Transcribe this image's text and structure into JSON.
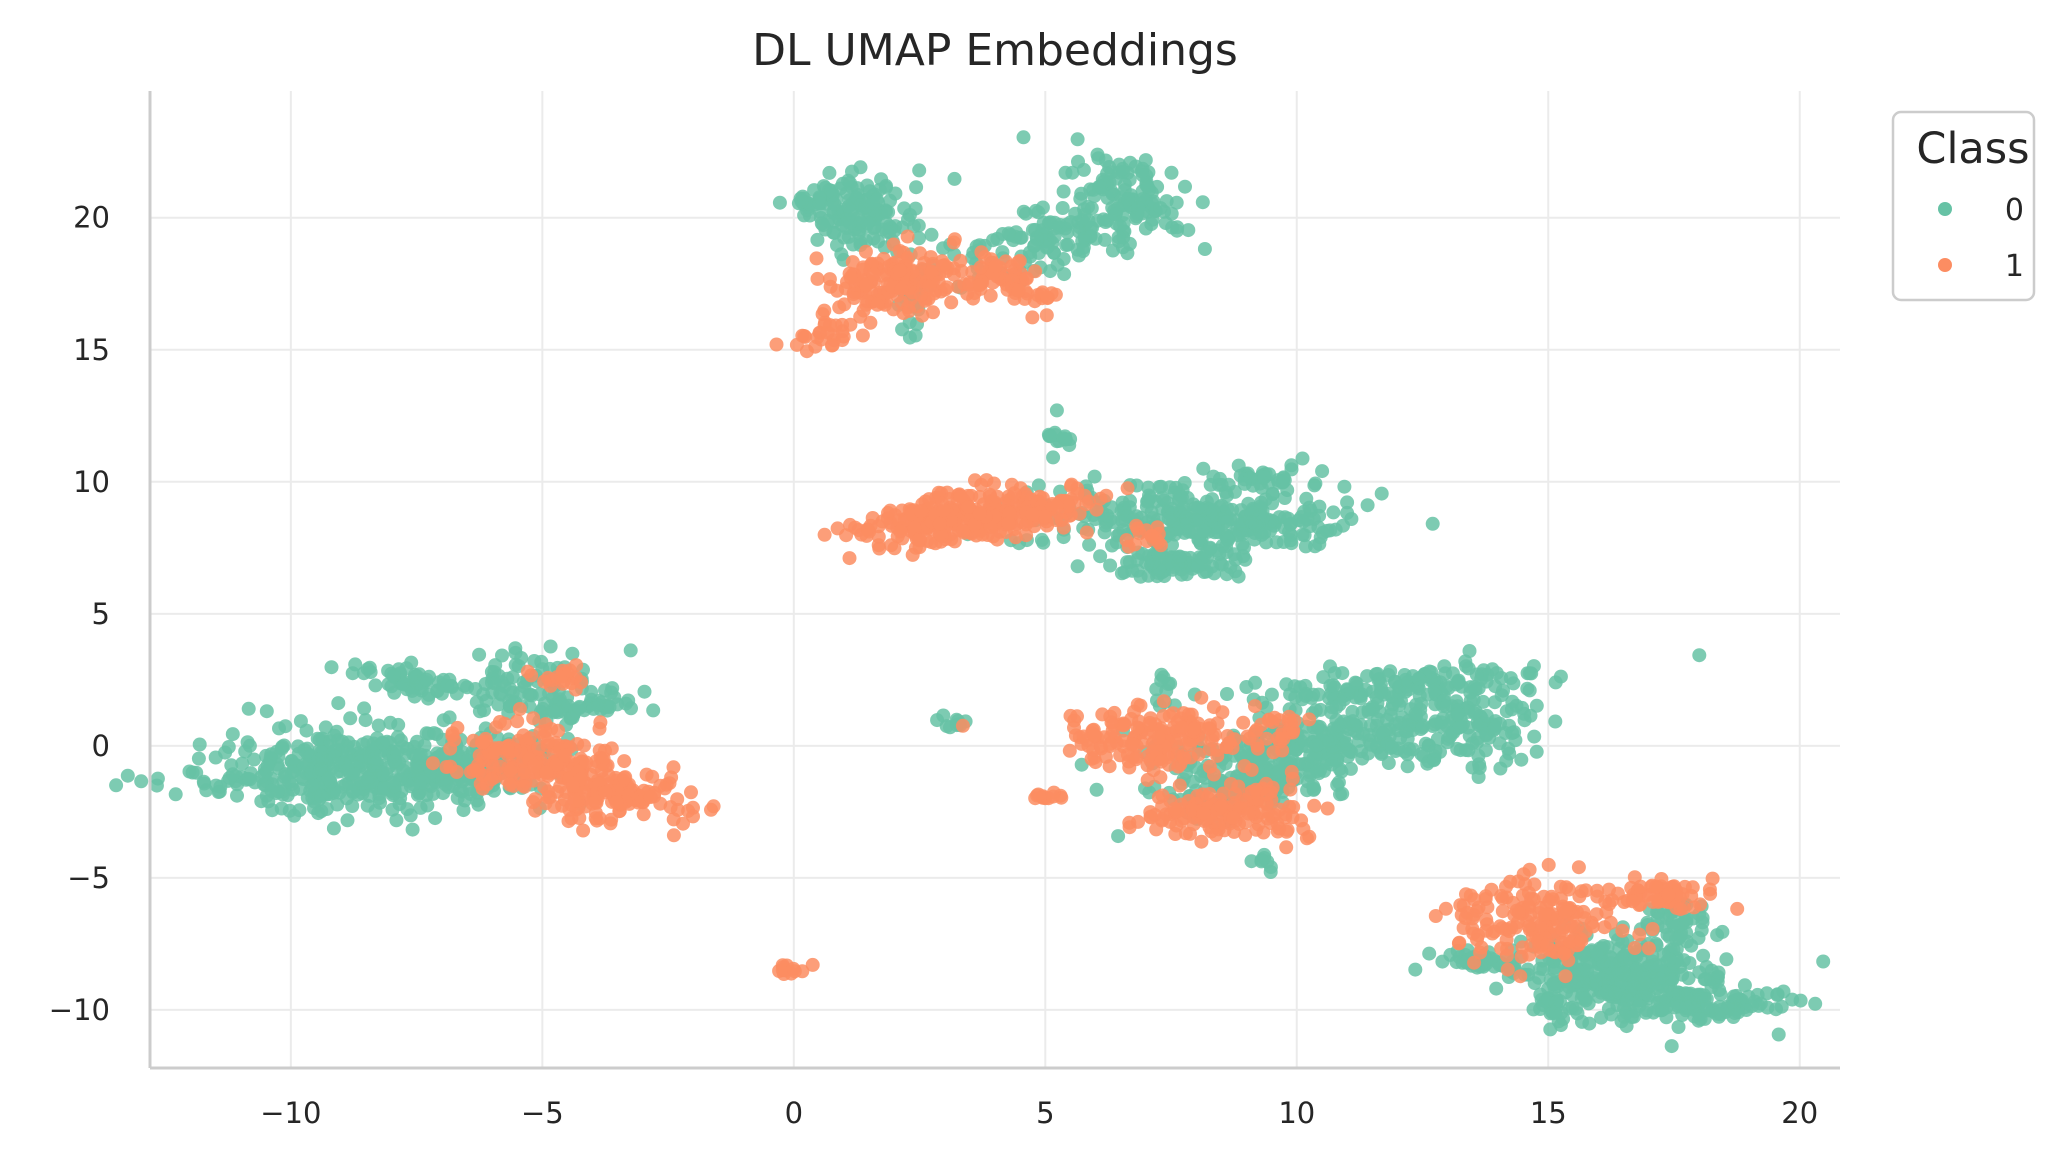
{
  "chart_data": {
    "type": "scatter",
    "title": "DL UMAP Embeddings",
    "xlabel": "",
    "ylabel": "",
    "xlim": [
      -12.8,
      20.8
    ],
    "ylim": [
      -12.2,
      24.8
    ],
    "xticks": [
      -10,
      -5,
      0,
      5,
      10,
      15,
      20
    ],
    "xtick_labels": [
      "−10",
      "−5",
      "0",
      "5",
      "10",
      "15",
      "20"
    ],
    "yticks": [
      -10,
      -5,
      0,
      5,
      10,
      15,
      20
    ],
    "ytick_labels": [
      "−10",
      "−5",
      "0",
      "5",
      "10",
      "15",
      "20"
    ],
    "grid": true,
    "legend": {
      "title": "Class",
      "placement": "upper-right-outside"
    },
    "series": [
      {
        "name": "0",
        "color": "#66c2a5",
        "clusters": [
          {
            "cx": -8.6,
            "cy": -0.9,
            "sx": 1.6,
            "sy": 0.8,
            "n": 420,
            "rot": -0.05
          },
          {
            "cx": -6.6,
            "cy": -0.9,
            "sx": 0.9,
            "sy": 0.6,
            "n": 120,
            "rot": 0.1
          },
          {
            "cx": -7.5,
            "cy": 2.4,
            "sx": 0.6,
            "sy": 0.25,
            "n": 60,
            "rot": -0.3
          },
          {
            "cx": -5.2,
            "cy": 2.2,
            "sx": 0.8,
            "sy": 0.8,
            "n": 90,
            "rot": 0.3
          },
          {
            "cx": -4.3,
            "cy": 1.4,
            "sx": 0.6,
            "sy": 0.2,
            "n": 40,
            "rot": 0.2
          },
          {
            "cx": 1.3,
            "cy": 20.2,
            "sx": 0.6,
            "sy": 0.7,
            "n": 140,
            "rot": 0.2
          },
          {
            "cx": 5.2,
            "cy": 19.2,
            "sx": 1.3,
            "sy": 0.6,
            "n": 150,
            "rot": 0.6
          },
          {
            "cx": 6.6,
            "cy": 21.2,
            "sx": 0.5,
            "sy": 0.8,
            "n": 80,
            "rot": 0.6
          },
          {
            "cx": 2.4,
            "cy": 17.0,
            "sx": 0.15,
            "sy": 0.6,
            "n": 25,
            "rot": 0.0
          },
          {
            "cx": 0.2,
            "cy": 20.6,
            "sx": 0.2,
            "sy": 0.1,
            "n": 12,
            "rot": 0.0
          },
          {
            "cx": 8.0,
            "cy": 8.6,
            "sx": 1.5,
            "sy": 0.7,
            "n": 330,
            "rot": -0.05
          },
          {
            "cx": 7.5,
            "cy": 6.9,
            "sx": 0.7,
            "sy": 0.25,
            "n": 80,
            "rot": 0.0
          },
          {
            "cx": 9.5,
            "cy": 10.2,
            "sx": 0.4,
            "sy": 0.15,
            "n": 25,
            "rot": 0.0
          },
          {
            "cx": 5.3,
            "cy": 11.7,
            "sx": 0.15,
            "sy": 0.4,
            "n": 15,
            "rot": 0.0
          },
          {
            "cx": 3.2,
            "cy": 0.9,
            "sx": 0.15,
            "sy": 0.1,
            "n": 10,
            "rot": 0.0
          },
          {
            "cx": 7.4,
            "cy": 2.2,
            "sx": 0.15,
            "sy": 0.3,
            "n": 10,
            "rot": 0.0
          },
          {
            "cx": 10.5,
            "cy": 0.0,
            "sx": 1.8,
            "sy": 0.7,
            "n": 320,
            "rot": 0.3
          },
          {
            "cx": 12.0,
            "cy": 2.2,
            "sx": 1.6,
            "sy": 0.4,
            "n": 150,
            "rot": 0.15
          },
          {
            "cx": 13.5,
            "cy": 0.8,
            "sx": 0.6,
            "sy": 0.8,
            "n": 80,
            "rot": 0.3
          },
          {
            "cx": 9.0,
            "cy": -1.6,
            "sx": 0.9,
            "sy": 0.4,
            "n": 100,
            "rot": 0.4
          },
          {
            "cx": 9.3,
            "cy": -4.5,
            "sx": 0.1,
            "sy": 0.2,
            "n": 8,
            "rot": 0.0
          },
          {
            "cx": 16.6,
            "cy": -8.8,
            "sx": 1.0,
            "sy": 0.8,
            "n": 350,
            "rot": -0.1
          },
          {
            "cx": 18.4,
            "cy": -9.8,
            "sx": 0.7,
            "sy": 0.3,
            "n": 80,
            "rot": 0.2
          },
          {
            "cx": 13.8,
            "cy": -8.2,
            "sx": 0.6,
            "sy": 0.2,
            "n": 50,
            "rot": -0.2
          },
          {
            "cx": 17.6,
            "cy": -6.5,
            "sx": 0.3,
            "sy": 0.4,
            "n": 40,
            "rot": 0.0
          },
          {
            "cx": 15.2,
            "cy": -9.8,
            "sx": 0.2,
            "sy": 0.6,
            "n": 25,
            "rot": 0.0
          }
        ]
      },
      {
        "name": "1",
        "color": "#fc8d62",
        "clusters": [
          {
            "cx": -5.2,
            "cy": -0.5,
            "sx": 0.8,
            "sy": 0.6,
            "n": 170,
            "rot": -0.2
          },
          {
            "cx": -3.8,
            "cy": -1.8,
            "sx": 0.8,
            "sy": 0.5,
            "n": 150,
            "rot": -0.2
          },
          {
            "cx": -4.7,
            "cy": 2.5,
            "sx": 0.3,
            "sy": 0.2,
            "n": 20,
            "rot": 0.5
          },
          {
            "cx": 2.0,
            "cy": 17.6,
            "sx": 0.7,
            "sy": 0.6,
            "n": 170,
            "rot": 0.1
          },
          {
            "cx": 4.1,
            "cy": 17.6,
            "sx": 0.4,
            "sy": 0.7,
            "n": 60,
            "rot": 0.6
          },
          {
            "cx": 0.6,
            "cy": 15.5,
            "sx": 0.4,
            "sy": 0.25,
            "n": 25,
            "rot": 0.5
          },
          {
            "cx": 5.0,
            "cy": 17.1,
            "sx": 0.1,
            "sy": 0.1,
            "n": 6,
            "rot": 0.0
          },
          {
            "cx": 3.6,
            "cy": 8.7,
            "sx": 1.2,
            "sy": 0.45,
            "n": 320,
            "rot": 0.25
          },
          {
            "cx": 7.0,
            "cy": 7.8,
            "sx": 0.3,
            "sy": 0.2,
            "n": 15,
            "rot": 0.0
          },
          {
            "cx": 7.2,
            "cy": 0.3,
            "sx": 0.8,
            "sy": 0.6,
            "n": 170,
            "rot": 0.0
          },
          {
            "cx": 8.2,
            "cy": -2.5,
            "sx": 0.8,
            "sy": 0.35,
            "n": 100,
            "rot": 0.3
          },
          {
            "cx": 9.4,
            "cy": -2.6,
            "sx": 0.6,
            "sy": 0.6,
            "n": 50,
            "rot": 0.6
          },
          {
            "cx": 9.5,
            "cy": 0.6,
            "sx": 0.4,
            "sy": 0.5,
            "n": 30,
            "rot": 0.0
          },
          {
            "cx": 5.0,
            "cy": -1.9,
            "sx": 0.2,
            "sy": 0.1,
            "n": 12,
            "rot": 0.2
          },
          {
            "cx": 0.0,
            "cy": -8.5,
            "sx": 0.15,
            "sy": 0.1,
            "n": 12,
            "rot": 0.0
          },
          {
            "cx": 14.8,
            "cy": -6.6,
            "sx": 0.8,
            "sy": 0.8,
            "n": 180,
            "rot": 0.0
          },
          {
            "cx": 17.3,
            "cy": -5.6,
            "sx": 0.6,
            "sy": 0.3,
            "n": 60,
            "rot": -0.2
          }
        ]
      }
    ]
  }
}
